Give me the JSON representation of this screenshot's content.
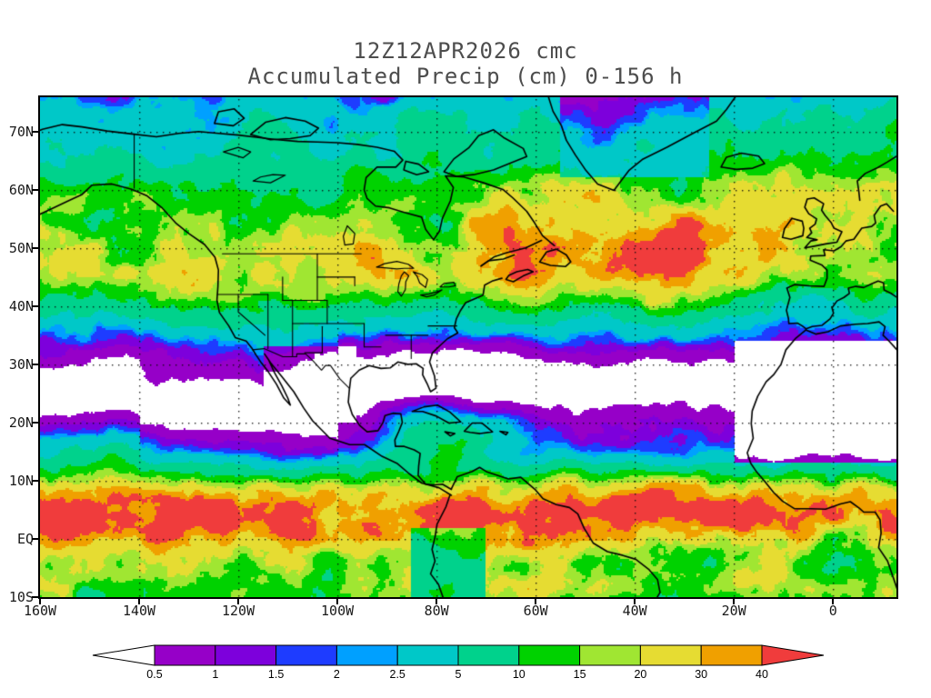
{
  "title": {
    "line1": "12Z12APR2026 cmc",
    "line2": "Accumulated Precip (cm) 0-156 h"
  },
  "axes": {
    "lat": [
      {
        "label": "70N",
        "value": 70
      },
      {
        "label": "60N",
        "value": 60
      },
      {
        "label": "50N",
        "value": 50
      },
      {
        "label": "40N",
        "value": 40
      },
      {
        "label": "30N",
        "value": 30
      },
      {
        "label": "20N",
        "value": 20
      },
      {
        "label": "10N",
        "value": 10
      },
      {
        "label": "EQ",
        "value": 0
      },
      {
        "label": "10S",
        "value": -10
      }
    ],
    "lon": [
      {
        "label": "160W",
        "value": -160
      },
      {
        "label": "140W",
        "value": -140
      },
      {
        "label": "120W",
        "value": -120
      },
      {
        "label": "100W",
        "value": -100
      },
      {
        "label": "80W",
        "value": -80
      },
      {
        "label": "60W",
        "value": -60
      },
      {
        "label": "40W",
        "value": -40
      },
      {
        "label": "20W",
        "value": -20
      },
      {
        "label": "0",
        "value": 0
      }
    ],
    "lat_range": [
      -10,
      75.9
    ],
    "lon_range": [
      -160,
      12.8
    ]
  },
  "colorbar": {
    "units": "cm",
    "levels": [
      "0.5",
      "1",
      "1.5",
      "2",
      "2.5",
      "5",
      "10",
      "15",
      "20",
      "30",
      "40"
    ],
    "colors": [
      "#ffffff",
      "#9600c8",
      "#7d00dc",
      "#1e3cff",
      "#00a0ff",
      "#00c8c8",
      "#00d28c",
      "#00d200",
      "#a0e632",
      "#e6dc32",
      "#f0a000",
      "#f03c3c"
    ]
  }
}
